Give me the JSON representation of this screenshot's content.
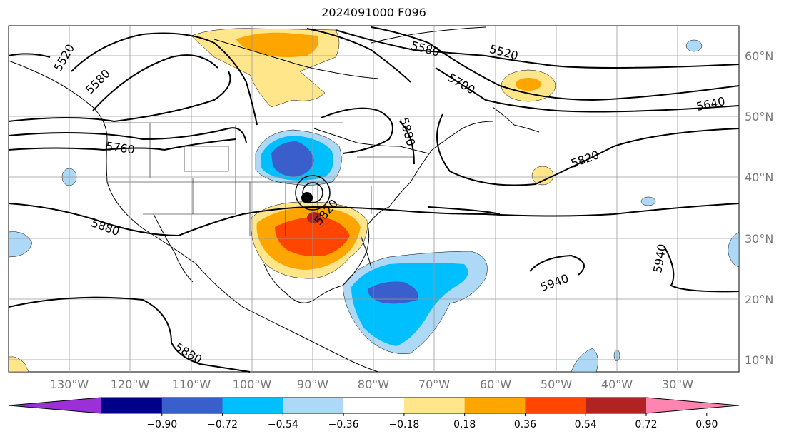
{
  "title": "2024091000 F096",
  "lat_labels": [
    "60°N",
    "50°N",
    "40°N",
    "30°N",
    "20°N",
    "10°N"
  ],
  "lon_labels": [
    "130°W",
    "120°W",
    "110°W",
    "100°W",
    "90°W",
    "80°W",
    "70°W",
    "60°W",
    "50°W",
    "40°W",
    "30°W"
  ],
  "contour_labels": [
    "5520",
    "5580",
    "5580",
    "5520",
    "5700",
    "5640",
    "5880",
    "5760",
    "5820",
    "5820",
    "5880",
    "5940",
    "5940",
    "5880"
  ],
  "colorbar": {
    "ticks": [
      "−0.90",
      "−0.72",
      "−0.54",
      "−0.36",
      "−0.18",
      "0.18",
      "0.36",
      "0.54",
      "0.72",
      "0.90"
    ],
    "colors": [
      "#9b30d9",
      "#000088",
      "#3a5fcd",
      "#00bfff",
      "#add8f6",
      "#ffffff",
      "#ffe68a",
      "#ffa500",
      "#ff4500",
      "#b22222",
      "#ff85b0"
    ]
  },
  "colors": {
    "land": "#ffffff",
    "contour": "#000000",
    "grid": "#999999"
  }
}
